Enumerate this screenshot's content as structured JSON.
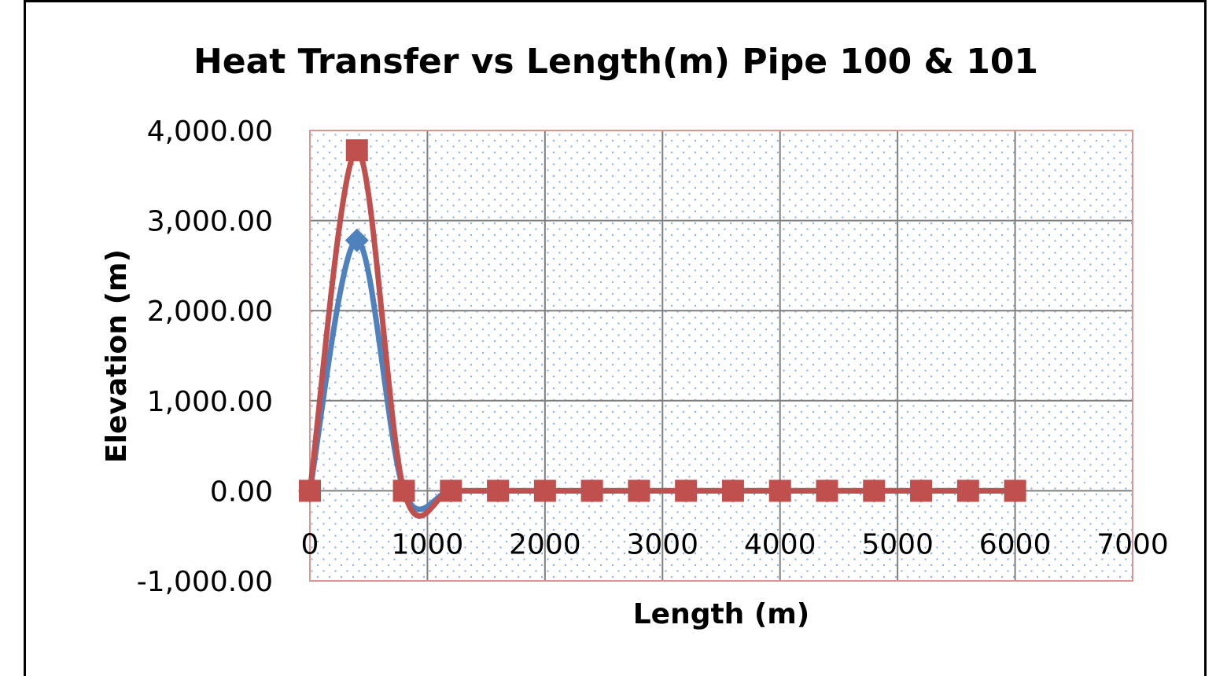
{
  "chart_data": {
    "type": "line",
    "title": "Heat Transfer vs Length(m) Pipe 100 & 101",
    "xlabel": "Length (m)",
    "ylabel": "Elevation (m)",
    "xlim": [
      0,
      7000
    ],
    "ylim": [
      -1000,
      4000
    ],
    "x_ticks": [
      "0",
      "1000",
      "2000",
      "3000",
      "4000",
      "5000",
      "6000",
      "7000"
    ],
    "y_ticks": [
      "4,000.00",
      "3,000.00",
      "2,000.00",
      "1,000.00",
      "0.00",
      "-1,000.00"
    ],
    "x_tick_values": [
      0,
      1000,
      2000,
      3000,
      4000,
      5000,
      6000,
      7000
    ],
    "y_tick_values": [
      4000,
      3000,
      2000,
      1000,
      0,
      -1000
    ],
    "grid": true,
    "legend": "none",
    "smooth": true,
    "series": [
      {
        "marker": "diamond",
        "color": "#4f81bd",
        "x": [
          0,
          400,
          800,
          1200,
          1600,
          2000,
          2400,
          2800,
          3200,
          3600,
          4000,
          4400,
          4800,
          5200,
          5600,
          6000
        ],
        "y": [
          0,
          2780,
          0,
          0,
          0,
          0,
          0,
          0,
          0,
          0,
          0,
          0,
          0,
          0,
          0,
          0
        ]
      },
      {
        "marker": "square",
        "color": "#c0504d",
        "x": [
          0,
          400,
          800,
          1200,
          1600,
          2000,
          2400,
          2800,
          3200,
          3600,
          4000,
          4400,
          4800,
          5200,
          5600,
          6000
        ],
        "y": [
          0,
          3780,
          0,
          0,
          0,
          0,
          0,
          0,
          0,
          0,
          0,
          0,
          0,
          0,
          0,
          0
        ]
      }
    ],
    "colors": {
      "plot_border": "#d99694",
      "grid": "#7f7f7f",
      "dots": "#8db3e2"
    }
  }
}
